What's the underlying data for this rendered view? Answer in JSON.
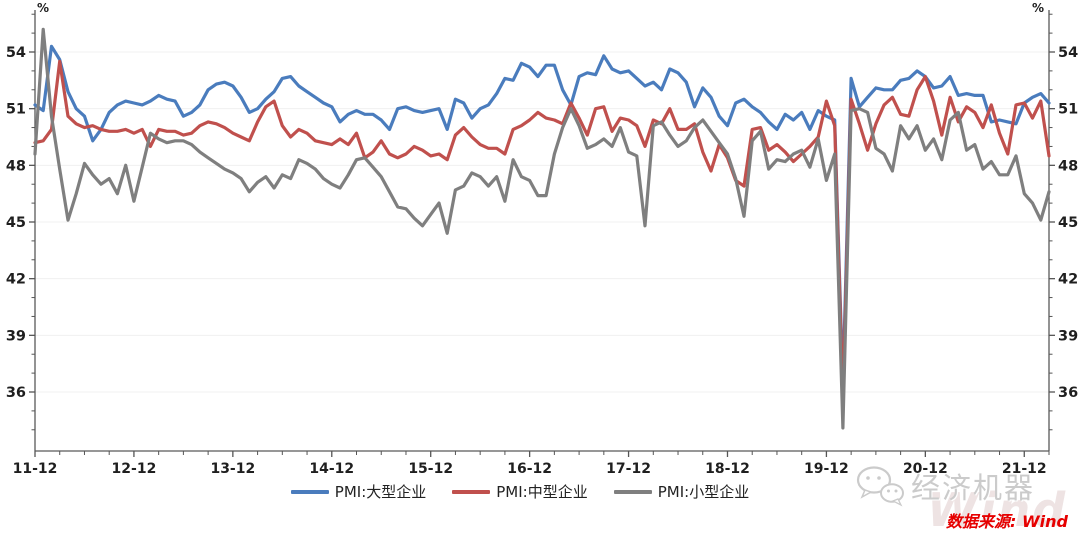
{
  "axis_units": {
    "left": "%",
    "right": "%"
  },
  "chart_data": {
    "type": "line",
    "title": "",
    "xlabel": "",
    "ylabel": "%",
    "x_start": "2011-12",
    "x_end": "2022-03",
    "x_tick_labels": [
      "11-12",
      "12-12",
      "13-12",
      "14-12",
      "15-12",
      "16-12",
      "17-12",
      "18-12",
      "19-12",
      "20-12",
      "21-12"
    ],
    "x_tick_positions": [
      0,
      12,
      24,
      36,
      48,
      60,
      72,
      84,
      96,
      108,
      120
    ],
    "y_ticks": [
      36,
      39,
      42,
      45,
      48,
      51,
      54
    ],
    "ylim": [
      32.9,
      56.2
    ],
    "grid": "horizontal-light",
    "legend_position": "bottom-center",
    "series": [
      {
        "name": "PMI:大型企业",
        "color": "#4a7cbd",
        "values": [
          51.2,
          50.9,
          54.3,
          53.6,
          51.9,
          51.0,
          50.6,
          49.3,
          49.9,
          50.8,
          51.2,
          51.4,
          51.3,
          51.2,
          51.4,
          51.7,
          51.5,
          51.4,
          50.6,
          50.8,
          51.2,
          52.0,
          52.3,
          52.4,
          52.2,
          51.6,
          50.8,
          51.0,
          51.5,
          51.9,
          52.6,
          52.7,
          52.2,
          51.9,
          51.6,
          51.3,
          51.1,
          50.3,
          50.7,
          50.9,
          50.7,
          50.7,
          50.4,
          49.9,
          51.0,
          51.1,
          50.9,
          50.8,
          50.9,
          51.0,
          49.9,
          51.5,
          51.3,
          50.5,
          51.0,
          51.2,
          51.8,
          52.6,
          52.5,
          53.4,
          53.2,
          52.7,
          53.3,
          53.3,
          52.0,
          51.2,
          52.7,
          52.9,
          52.8,
          53.8,
          53.1,
          52.9,
          53.0,
          52.6,
          52.2,
          52.4,
          52.0,
          53.1,
          52.9,
          52.4,
          51.1,
          52.1,
          51.6,
          50.6,
          50.1,
          51.3,
          51.5,
          51.1,
          50.8,
          50.3,
          49.9,
          50.7,
          50.4,
          50.8,
          49.9,
          50.9,
          50.6,
          50.4,
          36.3,
          52.6,
          51.1,
          51.6,
          52.1,
          52.0,
          52.0,
          52.5,
          52.6,
          53.0,
          52.7,
          52.1,
          52.2,
          52.7,
          51.7,
          51.8,
          51.7,
          51.7,
          50.3,
          50.4,
          50.3,
          50.2,
          51.3,
          51.6,
          51.8,
          51.3
        ]
      },
      {
        "name": "PMI:中型企业",
        "color": "#c0504d",
        "values": [
          49.2,
          49.3,
          49.9,
          53.5,
          50.6,
          50.2,
          50.0,
          50.1,
          49.9,
          49.8,
          49.8,
          49.9,
          49.7,
          49.9,
          49.0,
          49.9,
          49.8,
          49.8,
          49.6,
          49.7,
          50.1,
          50.3,
          50.2,
          50.0,
          49.7,
          49.5,
          49.3,
          50.3,
          51.1,
          51.4,
          50.1,
          49.5,
          49.9,
          49.7,
          49.3,
          49.2,
          49.1,
          49.4,
          49.1,
          49.7,
          48.4,
          48.7,
          49.3,
          48.6,
          48.4,
          48.6,
          49.0,
          48.8,
          48.5,
          48.6,
          48.3,
          49.6,
          50.0,
          49.5,
          49.1,
          48.9,
          48.9,
          48.6,
          49.9,
          50.1,
          50.4,
          50.8,
          50.5,
          50.4,
          50.2,
          51.3,
          50.5,
          49.6,
          51.0,
          51.1,
          49.8,
          50.5,
          50.4,
          50.1,
          49.0,
          50.4,
          50.2,
          51.0,
          49.9,
          49.9,
          50.2,
          48.7,
          47.7,
          49.1,
          48.4,
          47.2,
          46.9,
          49.9,
          50.0,
          48.8,
          49.1,
          48.7,
          48.2,
          48.6,
          49.0,
          49.5,
          51.4,
          50.1,
          35.5,
          51.5,
          50.2,
          48.8,
          50.2,
          51.2,
          51.6,
          50.7,
          50.6,
          52.0,
          52.7,
          51.4,
          49.6,
          51.6,
          50.3,
          51.1,
          50.8,
          50.0,
          51.2,
          49.7,
          48.6,
          51.2,
          51.3,
          50.5,
          51.4,
          48.5
        ]
      },
      {
        "name": "PMI:小型企业",
        "color": "#7f7f7f",
        "values": [
          48.6,
          55.2,
          50.6,
          47.8,
          45.1,
          46.5,
          48.1,
          47.5,
          47.0,
          47.3,
          46.5,
          48.0,
          46.1,
          47.9,
          49.7,
          49.4,
          49.2,
          49.3,
          49.3,
          49.1,
          48.7,
          48.4,
          48.1,
          47.8,
          47.6,
          47.3,
          46.6,
          47.1,
          47.4,
          46.8,
          47.5,
          47.3,
          48.3,
          48.1,
          47.8,
          47.3,
          47.0,
          46.8,
          47.5,
          48.3,
          48.4,
          47.9,
          47.4,
          46.6,
          45.8,
          45.7,
          45.2,
          44.8,
          45.4,
          46.0,
          44.4,
          46.7,
          46.9,
          47.6,
          47.4,
          46.9,
          47.4,
          46.1,
          48.3,
          47.4,
          47.2,
          46.4,
          46.4,
          48.6,
          50.0,
          51.0,
          50.1,
          48.9,
          49.1,
          49.4,
          49.0,
          50.0,
          48.7,
          48.5,
          44.8,
          50.1,
          50.3,
          49.6,
          49.0,
          49.3,
          50.0,
          50.4,
          49.8,
          49.2,
          48.6,
          47.3,
          45.3,
          49.3,
          49.8,
          47.8,
          48.3,
          48.2,
          48.6,
          48.8,
          47.9,
          49.4,
          47.2,
          48.6,
          34.1,
          50.9,
          51.0,
          50.8,
          48.9,
          48.6,
          47.7,
          50.1,
          49.4,
          50.1,
          48.8,
          49.4,
          48.3,
          50.4,
          50.8,
          48.8,
          49.1,
          47.8,
          48.2,
          47.5,
          47.5,
          48.5,
          46.5,
          46.0,
          45.1,
          46.6
        ]
      }
    ]
  },
  "footer": {
    "source_label": "数据来源: Wind",
    "watermark_text": "经济机器",
    "watermark_brand": "Wind"
  },
  "style": {
    "axis_color": "#595959",
    "tick_color": "#555555",
    "label_color": "#1f1f1f",
    "grid_color": "#f0f0f0",
    "line_width": 3.2
  }
}
